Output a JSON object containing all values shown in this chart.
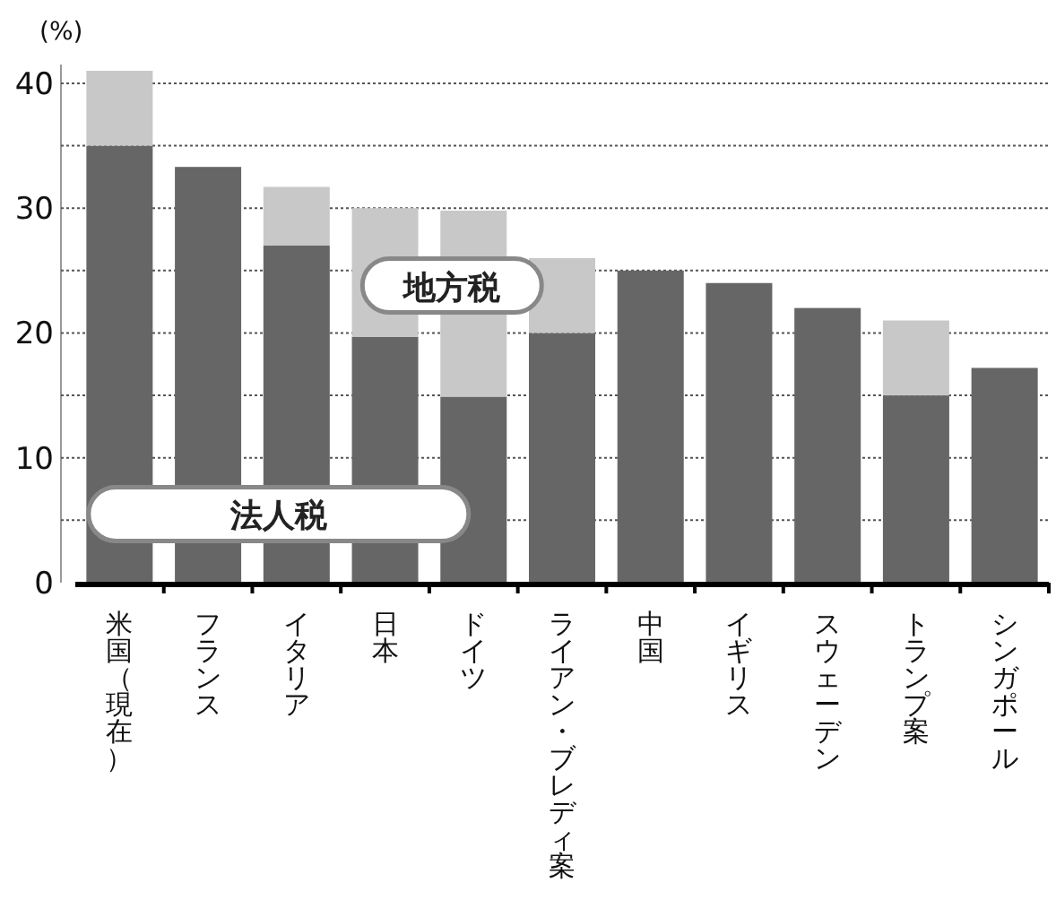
{
  "chart_data": {
    "type": "bar",
    "ylabel": "(%)",
    "stacked": true,
    "categories": [
      "米国（現在）",
      "フランス",
      "イタリア",
      "日本",
      "ドイツ",
      "ライアン・ブレディ案",
      "中国",
      "イギリス",
      "スウェーデン",
      "トランプ案",
      "シンガポール"
    ],
    "series": [
      {
        "name": "法人税",
        "color": "#666666",
        "values": [
          35,
          33.3,
          27,
          19.7,
          14.9,
          20,
          25,
          24,
          22,
          15,
          17.2
        ]
      },
      {
        "name": "地方税",
        "color": "#c8c8c8",
        "values": [
          6,
          null,
          4.7,
          10.3,
          14.9,
          6,
          null,
          null,
          null,
          6,
          null
        ]
      }
    ],
    "ylim": [
      0,
      41.5
    ],
    "yticks": [
      0,
      {
        "value": 5,
        "label": null
      },
      10,
      {
        "value": 15,
        "label": null
      },
      20,
      {
        "value": 25,
        "label": null
      },
      30,
      {
        "value": 35,
        "label": null
      },
      40
    ],
    "grid": "y",
    "legend": false
  }
}
